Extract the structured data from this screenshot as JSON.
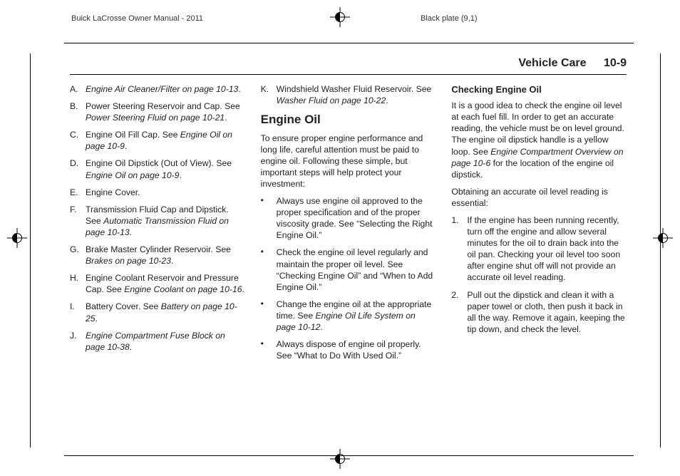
{
  "meta": {
    "manual_title": "Buick LaCrosse Owner Manual - 2011",
    "plate_label": "Black plate (9,1)"
  },
  "header": {
    "section": "Vehicle Care",
    "page": "10-9"
  },
  "col1": {
    "items": [
      {
        "m": "A.",
        "plain": "",
        "ital": "Engine Air Cleaner/Filter on page 10-13",
        "tail": "."
      },
      {
        "m": "B.",
        "plain": "Power Steering Reservoir and Cap. See ",
        "ital": "Power Steering Fluid on page 10-21",
        "tail": "."
      },
      {
        "m": "C.",
        "plain": "Engine Oil Fill Cap. See ",
        "ital": "Engine Oil on page 10-9",
        "tail": "."
      },
      {
        "m": "D.",
        "plain": "Engine Oil Dipstick (Out of View). See ",
        "ital": "Engine Oil on page 10-9",
        "tail": "."
      },
      {
        "m": "E.",
        "plain": "Engine Cover.",
        "ital": "",
        "tail": ""
      },
      {
        "m": "F.",
        "plain": "Transmission Fluid Cap and Dipstick. See ",
        "ital": "Automatic Transmission Fluid on page 10-13",
        "tail": "."
      },
      {
        "m": "G.",
        "plain": "Brake Master Cylinder Reservoir. See ",
        "ital": "Brakes on page 10-23",
        "tail": "."
      },
      {
        "m": "H.",
        "plain": "Engine Coolant Reservoir and Pressure Cap. See ",
        "ital": "Engine Coolant on page 10-16",
        "tail": "."
      },
      {
        "m": "I.",
        "plain": "Battery Cover. See ",
        "ital": "Battery on page 10-25",
        "tail": "."
      },
      {
        "m": "J.",
        "plain": "",
        "ital": "Engine Compartment Fuse Block on page 10-38",
        "tail": "."
      }
    ]
  },
  "col2": {
    "k_item": {
      "m": "K.",
      "plain": "Windshield Washer Fluid Reservoir. See ",
      "ital": "Washer Fluid on page 10-22",
      "tail": "."
    },
    "heading": "Engine Oil",
    "intro": "To ensure proper engine performance and long life, careful attention must be paid to engine oil. Following these simple, but important steps will help protect your investment:",
    "bullets": [
      {
        "plain": "Always use engine oil approved to the proper specification and of the proper viscosity grade. See “Selecting the Right Engine Oil.”",
        "ital": "",
        "tail": ""
      },
      {
        "plain": "Check the engine oil level regularly and maintain the proper oil level. See “Checking Engine Oil” and “When to Add Engine Oil.”",
        "ital": "",
        "tail": ""
      },
      {
        "plain": "Change the engine oil at the appropriate time. See ",
        "ital": "Engine Oil Life System on page 10-12",
        "tail": "."
      },
      {
        "plain": "Always dispose of engine oil properly. See “What to Do With Used Oil.”",
        "ital": "",
        "tail": ""
      }
    ]
  },
  "col3": {
    "heading": "Checking Engine Oil",
    "p1a": "It is a good idea to check the engine oil level at each fuel fill. In order to get an accurate reading, the vehicle must be on level ground. The engine oil dipstick handle is a yellow loop. See ",
    "p1i": "Engine Compartment Overview on page 10-6",
    "p1b": " for the location of the engine oil dipstick.",
    "p2": "Obtaining an accurate oil level reading is essential:",
    "steps": [
      {
        "m": "1.",
        "t": "If the engine has been running recently, turn off the engine and allow several minutes for the oil to drain back into the oil pan. Checking your oil level too soon after engine shut off will not provide an accurate oil level reading."
      },
      {
        "m": "2.",
        "t": "Pull out the dipstick and clean it with a paper towel or cloth, then push it back in all the way. Remove it again, keeping the tip down, and check the level."
      }
    ]
  }
}
